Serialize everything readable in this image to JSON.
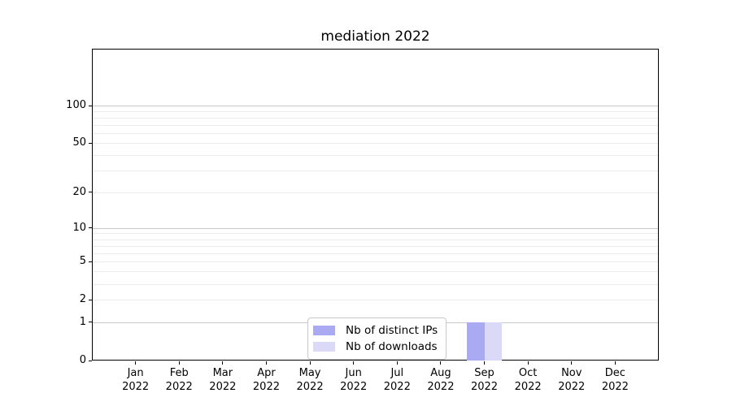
{
  "chart_data": {
    "type": "bar",
    "title": "mediation 2022",
    "categories": [
      "Jan 2022",
      "Feb 2022",
      "Mar 2022",
      "Apr 2022",
      "May 2022",
      "Jun 2022",
      "Jul 2022",
      "Aug 2022",
      "Sep 2022",
      "Oct 2022",
      "Nov 2022",
      "Dec 2022"
    ],
    "series": [
      {
        "name": "Nb of distinct IPs",
        "color": "#aaaaf2",
        "values": [
          0,
          0,
          0,
          0,
          0,
          0,
          0,
          0,
          1,
          0,
          0,
          0
        ]
      },
      {
        "name": "Nb of downloads",
        "color": "#dadaf8",
        "values": [
          0,
          0,
          0,
          0,
          0,
          0,
          0,
          0,
          1,
          0,
          0,
          0
        ]
      }
    ],
    "xlabel": "",
    "ylabel": "",
    "yscale": "log1p",
    "ylim": [
      0,
      113
    ],
    "ytick_labels": [
      0,
      1,
      2,
      5,
      10,
      20,
      50,
      100
    ],
    "y_major_gridlines": [
      1,
      10,
      100
    ],
    "y_minor_gridlines": [
      2,
      3,
      4,
      5,
      6,
      7,
      8,
      9,
      20,
      30,
      40,
      50,
      60,
      70,
      80,
      90
    ],
    "grid": "horizontal",
    "legend_position": "lower center",
    "colors": {
      "axis": "#000000",
      "text": "#000000",
      "major_grid": "#c8c8c8",
      "minor_grid": "#ebebeb",
      "legend_border": "#c9c9c9"
    }
  }
}
